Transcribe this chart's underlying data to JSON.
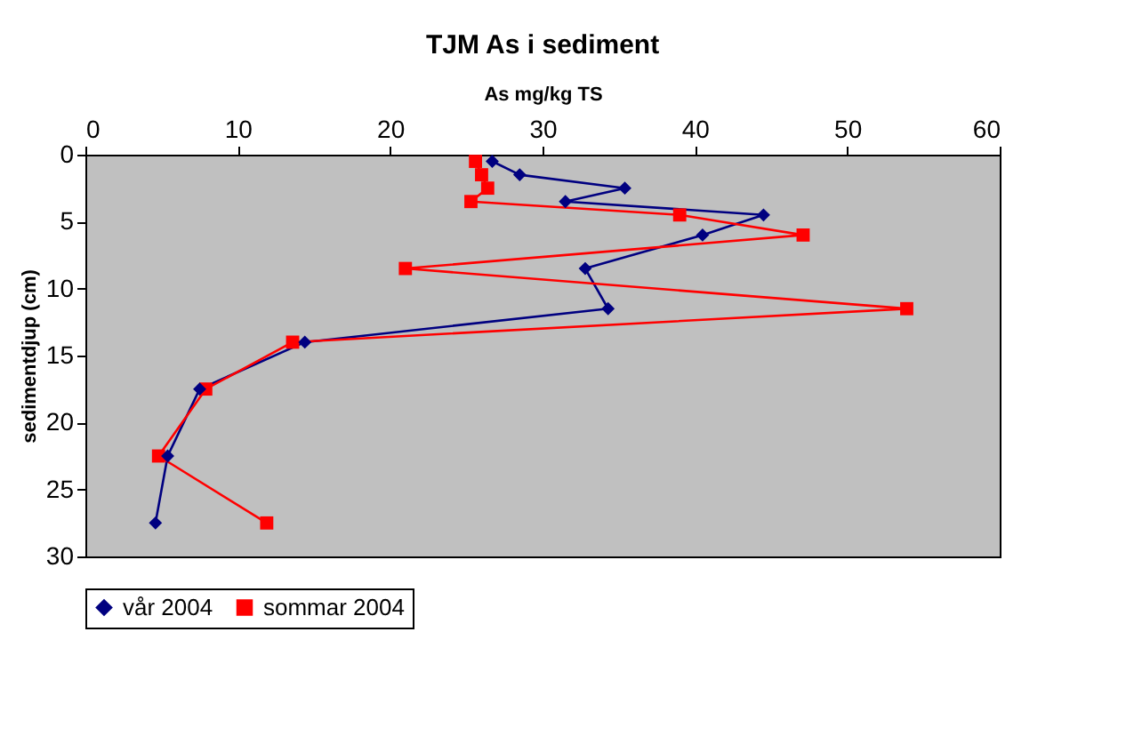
{
  "chart_data": {
    "type": "line",
    "title": "TJM As i sediment",
    "xlabel": "As mg/kg TS",
    "ylabel": "sedimentdjup (cm)",
    "xlim": [
      0,
      60
    ],
    "xticks": [
      0,
      10,
      20,
      30,
      40,
      50,
      60
    ],
    "ylim": [
      30,
      0
    ],
    "yticks": [
      0,
      5,
      10,
      15,
      20,
      25,
      30
    ],
    "grid": false,
    "legend": "bottom",
    "series": [
      {
        "name": "vår 2004",
        "color": "#000080",
        "marker": "diamond",
        "x": [
          26.7,
          28.5,
          35.4,
          31.5,
          44.5,
          40.5,
          32.8,
          34.3,
          14.4,
          7.5,
          5.4,
          4.6
        ],
        "values": [
          0.5,
          1.5,
          2.5,
          3.5,
          4.5,
          6,
          8.5,
          11.5,
          14,
          17.5,
          22.5,
          27.5
        ]
      },
      {
        "name": "sommar 2004",
        "color": "#ff0000",
        "marker": "square",
        "x": [
          25.6,
          26.0,
          26.4,
          25.3,
          39.0,
          47.1,
          21.0,
          53.9,
          13.6,
          7.9,
          4.8,
          11.9
        ],
        "values": [
          0.5,
          1.5,
          2.5,
          3.5,
          4.5,
          6,
          8.5,
          11.5,
          14,
          17.5,
          22.5,
          27.5
        ]
      }
    ]
  }
}
